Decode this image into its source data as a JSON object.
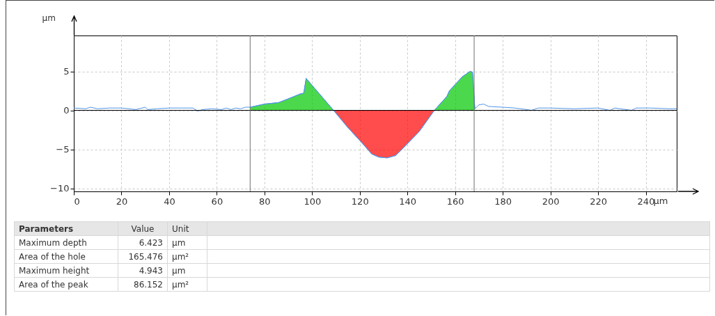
{
  "chart_data": {
    "type": "area",
    "xlabel": "µm",
    "ylabel": "µm",
    "xlim": [
      0,
      253
    ],
    "ylim": [
      -10.4,
      9.6
    ],
    "xticks": [
      0,
      20,
      40,
      60,
      80,
      100,
      120,
      140,
      160,
      180,
      200,
      220,
      240
    ],
    "yticks": [
      -10,
      -5,
      0,
      5
    ],
    "grid": true,
    "series": [
      {
        "color": "#00c800",
        "x": [
          74,
          80,
          86,
          91,
          95,
          96.5,
          97.5,
          100,
          109
        ],
        "values": [
          0.4,
          0.8,
          1.0,
          1.6,
          2.1,
          2.2,
          4.1,
          3.2,
          0
        ]
      },
      {
        "color": "#ff0000",
        "x": [
          109,
          115,
          121,
          125,
          128,
          131.5,
          135,
          138,
          145,
          151.3
        ],
        "values": [
          0,
          -2.2,
          -4.2,
          -5.6,
          -6.0,
          -6.1,
          -5.8,
          -4.9,
          -2.7,
          0
        ]
      },
      {
        "color": "#00c800",
        "x": [
          151.3,
          156.6,
          157.6,
          163,
          166.3,
          167.3,
          168.3
        ],
        "values": [
          0,
          1.8,
          2.5,
          4.3,
          5.0,
          4.9,
          0.2
        ]
      },
      {
        "type": "line",
        "color": "#4f95e8",
        "x": [
          0,
          5,
          7,
          10,
          15,
          20,
          26,
          30,
          31,
          35,
          40,
          45,
          50,
          52,
          54,
          58,
          62,
          64,
          66,
          68,
          70,
          72,
          74,
          80,
          86,
          91,
          95,
          96.5,
          97.5,
          100,
          109,
          115,
          121,
          125,
          128,
          131.5,
          135,
          138,
          145,
          151.3,
          156.6,
          157.6,
          163,
          166.3,
          167.3,
          168.3,
          170,
          172,
          174,
          180,
          185,
          190,
          192,
          195,
          200,
          210,
          220,
          225,
          227,
          234,
          236,
          242,
          250,
          253
        ],
        "values": [
          0.3,
          0.2,
          0.4,
          0.2,
          0.3,
          0.3,
          0.1,
          0.4,
          0.1,
          0.2,
          0.3,
          0.3,
          0.3,
          -0.1,
          0.1,
          0.2,
          0.1,
          0.3,
          0.1,
          0.3,
          0.2,
          0.4,
          0.4,
          0.8,
          1.0,
          1.6,
          2.1,
          2.2,
          4.1,
          3.2,
          0,
          -2.2,
          -4.2,
          -5.6,
          -6.0,
          -6.1,
          -5.8,
          -4.9,
          -2.7,
          0,
          1.8,
          2.5,
          4.3,
          5.0,
          4.9,
          0.2,
          0.7,
          0.8,
          0.5,
          0.4,
          0.3,
          0.1,
          0.0,
          0.3,
          0.3,
          0.2,
          0.3,
          0.0,
          0.3,
          0.0,
          0.3,
          0.3,
          0.2,
          0.2
        ]
      }
    ],
    "ref_lines": [
      {
        "axis": "y",
        "value": 0,
        "color": "#000000"
      },
      {
        "axis": "x",
        "value": 74,
        "color": "#707070"
      },
      {
        "axis": "x",
        "value": 168,
        "color": "#707070"
      }
    ],
    "annotations": [
      "Parameters",
      "Value",
      "Unit",
      "Maximum depth",
      "6.423",
      "µm",
      "Area of the hole",
      "165.476",
      "µm²",
      "Maximum height",
      "4.943",
      "µm",
      "Area of the peak",
      "86.152",
      "µm²"
    ]
  }
}
